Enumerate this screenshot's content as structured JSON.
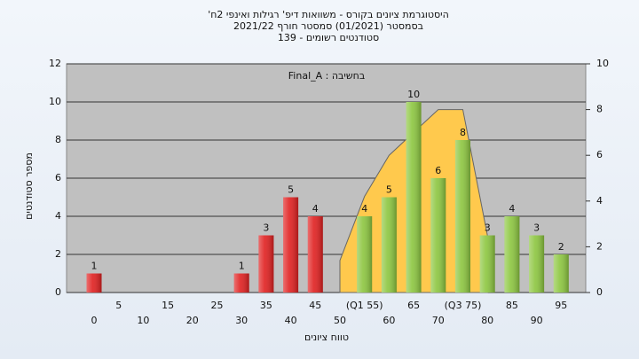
{
  "chart_data": {
    "type": "bar",
    "title": "היסטוגרמת ציונים בקורס - משוואות דיפ' רגילות ואינפי 2ח'",
    "subtitle": "בסמסטר (01/2021) סמסטר חורף 2021/22",
    "subtitle2": "סטודנטים רשומים - 139",
    "annotation": "בחשיבה : Final_A",
    "y_label": "מספר סטודנטים",
    "x_label": "טווח ציונים",
    "categories": [
      "0",
      "5",
      "10",
      "15",
      "20",
      "25",
      "30",
      "35",
      "40",
      "45",
      "50",
      "(Q1 55)",
      "60",
      "65",
      "70",
      "(Q3 75)",
      "80",
      "85",
      "90",
      "95"
    ],
    "values": [
      1,
      0,
      0,
      0,
      0,
      0,
      1,
      3,
      5,
      4,
      0,
      4,
      5,
      10,
      6,
      8,
      3,
      4,
      3,
      2
    ],
    "colors": [
      "#e02020",
      "#e02020",
      "#e02020",
      "#e02020",
      "#e02020",
      "#e02020",
      "#e02020",
      "#e02020",
      "#e02020",
      "#e02020",
      "#e02020",
      "#8cc63f",
      "#8cc63f",
      "#8cc63f",
      "#8cc63f",
      "#8cc63f",
      "#8cc63f",
      "#8cc63f",
      "#8cc63f",
      "#8cc63f"
    ],
    "area": {
      "color": "#ffc94d",
      "axis": "y2",
      "values": [
        null,
        null,
        null,
        null,
        null,
        null,
        null,
        null,
        null,
        null,
        1.4,
        4.2,
        6.0,
        7.0,
        8.0,
        8.0,
        2.5,
        null,
        null,
        null
      ]
    },
    "ylim": [
      0,
      12
    ],
    "yticks": [
      0,
      2,
      4,
      6,
      8,
      10,
      12
    ],
    "y2lim": [
      0,
      10
    ],
    "y2ticks": [
      0,
      2,
      4,
      6,
      8,
      10
    ],
    "grid": true
  }
}
